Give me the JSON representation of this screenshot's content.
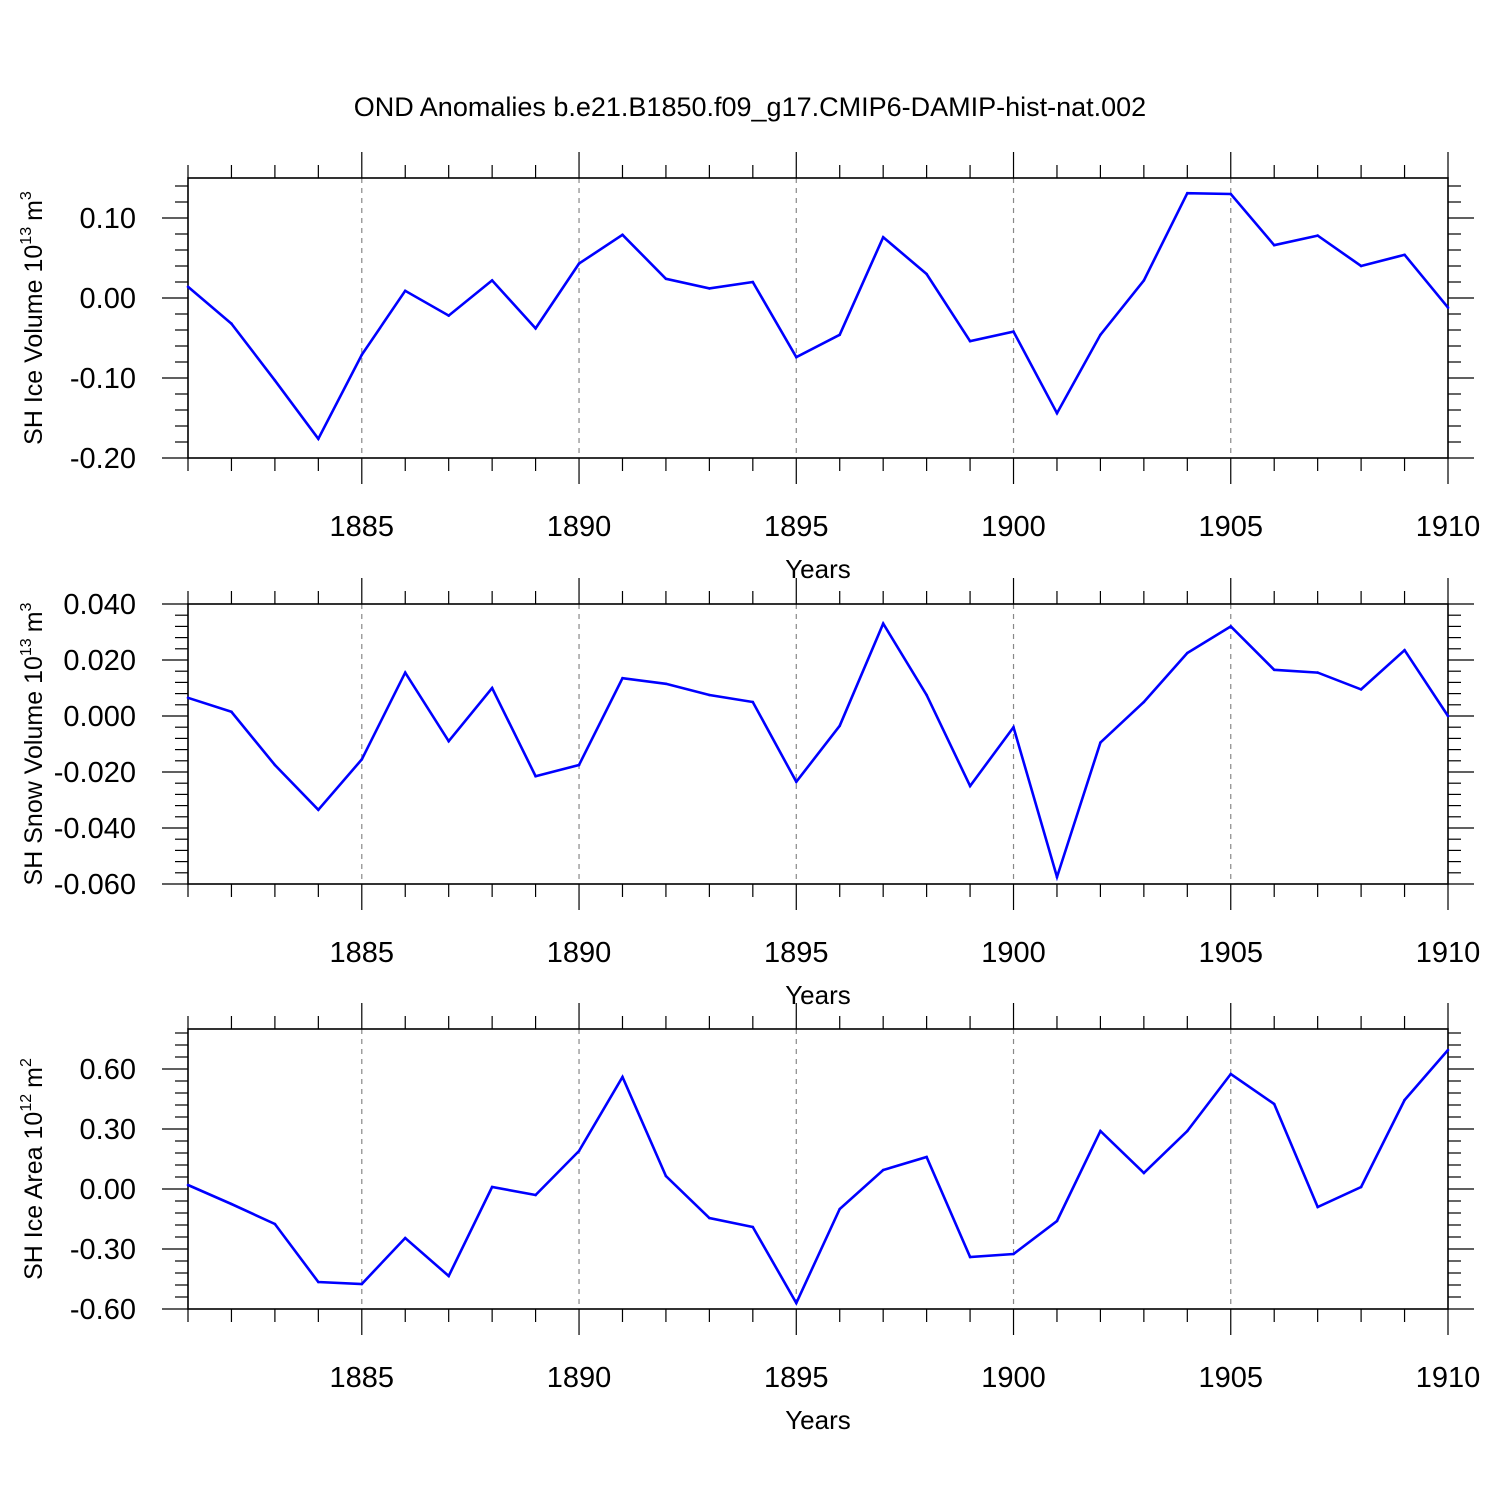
{
  "title": "OND Anomalies b.e21.B1850.f09_g17.CMIP6-DAMIP-hist-nat.002",
  "line_color": "#0000ff",
  "chart_data": [
    {
      "type": "line",
      "ylabel": "SH Ice Volume",
      "ylabel_unit_base": "10",
      "ylabel_unit_exp": "13",
      "ylabel_unit": "m",
      "ylabel_unit_power": "3",
      "xlabel": "Years",
      "xlim": [
        1881,
        1910
      ],
      "ylim": [
        -0.2,
        0.15
      ],
      "yticks": [
        -0.2,
        -0.1,
        0.0,
        0.1
      ],
      "ytick_labels": [
        "-0.20",
        "-0.10",
        "0.00",
        "0.10"
      ],
      "xticks": [
        1885,
        1890,
        1895,
        1900,
        1905,
        1910
      ],
      "xtick_labels": [
        "1885",
        "1890",
        "1895",
        "1900",
        "1905",
        "1910"
      ],
      "grid": "vertical dashed at major x ticks",
      "series": [
        {
          "x": [
            1881,
            1882,
            1883,
            1884,
            1885,
            1886,
            1887,
            1888,
            1889,
            1890,
            1891,
            1892,
            1893,
            1894,
            1895,
            1896,
            1897,
            1898,
            1899,
            1900,
            1901,
            1902,
            1903,
            1904,
            1905,
            1906,
            1907,
            1908,
            1909,
            1910
          ],
          "values": [
            0.014,
            -0.032,
            -0.103,
            -0.176,
            -0.071,
            0.009,
            -0.022,
            0.022,
            -0.038,
            0.043,
            0.079,
            0.024,
            0.012,
            0.02,
            -0.074,
            -0.046,
            0.076,
            0.03,
            -0.054,
            -0.042,
            -0.144,
            -0.046,
            0.022,
            0.131,
            0.13,
            0.066,
            0.078,
            0.04,
            0.054,
            -0.012
          ]
        }
      ]
    },
    {
      "type": "line",
      "ylabel": "SH Snow Volume",
      "ylabel_unit_base": "10",
      "ylabel_unit_exp": "13",
      "ylabel_unit": "m",
      "ylabel_unit_power": "3",
      "xlabel": "Years",
      "xlim": [
        1881,
        1910
      ],
      "ylim": [
        -0.06,
        0.04
      ],
      "yticks": [
        -0.06,
        -0.04,
        -0.02,
        0.0,
        0.02,
        0.04
      ],
      "ytick_labels": [
        "-0.060",
        "-0.040",
        "-0.020",
        "0.000",
        "0.020",
        "0.040"
      ],
      "xticks": [
        1885,
        1890,
        1895,
        1900,
        1905,
        1910
      ],
      "xtick_labels": [
        "1885",
        "1890",
        "1895",
        "1900",
        "1905",
        "1910"
      ],
      "grid": "vertical dashed at major x ticks",
      "series": [
        {
          "x": [
            1881,
            1882,
            1883,
            1884,
            1885,
            1886,
            1887,
            1888,
            1889,
            1890,
            1891,
            1892,
            1893,
            1894,
            1895,
            1896,
            1897,
            1898,
            1899,
            1900,
            1901,
            1902,
            1903,
            1904,
            1905,
            1906,
            1907,
            1908,
            1909,
            1910
          ],
          "values": [
            0.0065,
            0.0015,
            -0.0175,
            -0.0335,
            -0.0155,
            0.0155,
            -0.009,
            0.01,
            -0.0215,
            -0.0175,
            0.0135,
            0.0115,
            0.0075,
            0.005,
            -0.0235,
            -0.0035,
            0.033,
            0.0075,
            -0.025,
            -0.004,
            -0.0575,
            -0.0095,
            0.005,
            0.0225,
            0.032,
            0.0165,
            0.0155,
            0.0095,
            0.0235,
            0.0
          ]
        }
      ]
    },
    {
      "type": "line",
      "ylabel": "SH Ice Area",
      "ylabel_unit_base": "10",
      "ylabel_unit_exp": "12",
      "ylabel_unit": "m",
      "ylabel_unit_power": "2",
      "xlabel": "Years",
      "xlim": [
        1881,
        1910
      ],
      "ylim": [
        -0.6,
        0.8
      ],
      "yticks": [
        -0.6,
        -0.3,
        0.0,
        0.3,
        0.6
      ],
      "ytick_labels": [
        "-0.60",
        "-0.30",
        "0.00",
        "0.30",
        "0.60"
      ],
      "xticks": [
        1885,
        1890,
        1895,
        1900,
        1905,
        1910
      ],
      "xtick_labels": [
        "1885",
        "1890",
        "1895",
        "1900",
        "1905",
        "1910"
      ],
      "grid": "vertical dashed at major x ticks",
      "series": [
        {
          "x": [
            1881,
            1882,
            1883,
            1884,
            1885,
            1886,
            1887,
            1888,
            1889,
            1890,
            1891,
            1892,
            1893,
            1894,
            1895,
            1896,
            1897,
            1898,
            1899,
            1900,
            1901,
            1902,
            1903,
            1904,
            1905,
            1906,
            1907,
            1908,
            1909,
            1910
          ],
          "values": [
            0.02,
            -0.075,
            -0.175,
            -0.465,
            -0.475,
            -0.245,
            -0.435,
            0.01,
            -0.03,
            0.19,
            0.56,
            0.065,
            -0.145,
            -0.19,
            -0.57,
            -0.1,
            0.095,
            0.16,
            -0.34,
            -0.325,
            -0.16,
            0.29,
            0.08,
            0.29,
            0.575,
            0.425,
            -0.09,
            0.01,
            0.445,
            0.695
          ]
        }
      ]
    }
  ]
}
